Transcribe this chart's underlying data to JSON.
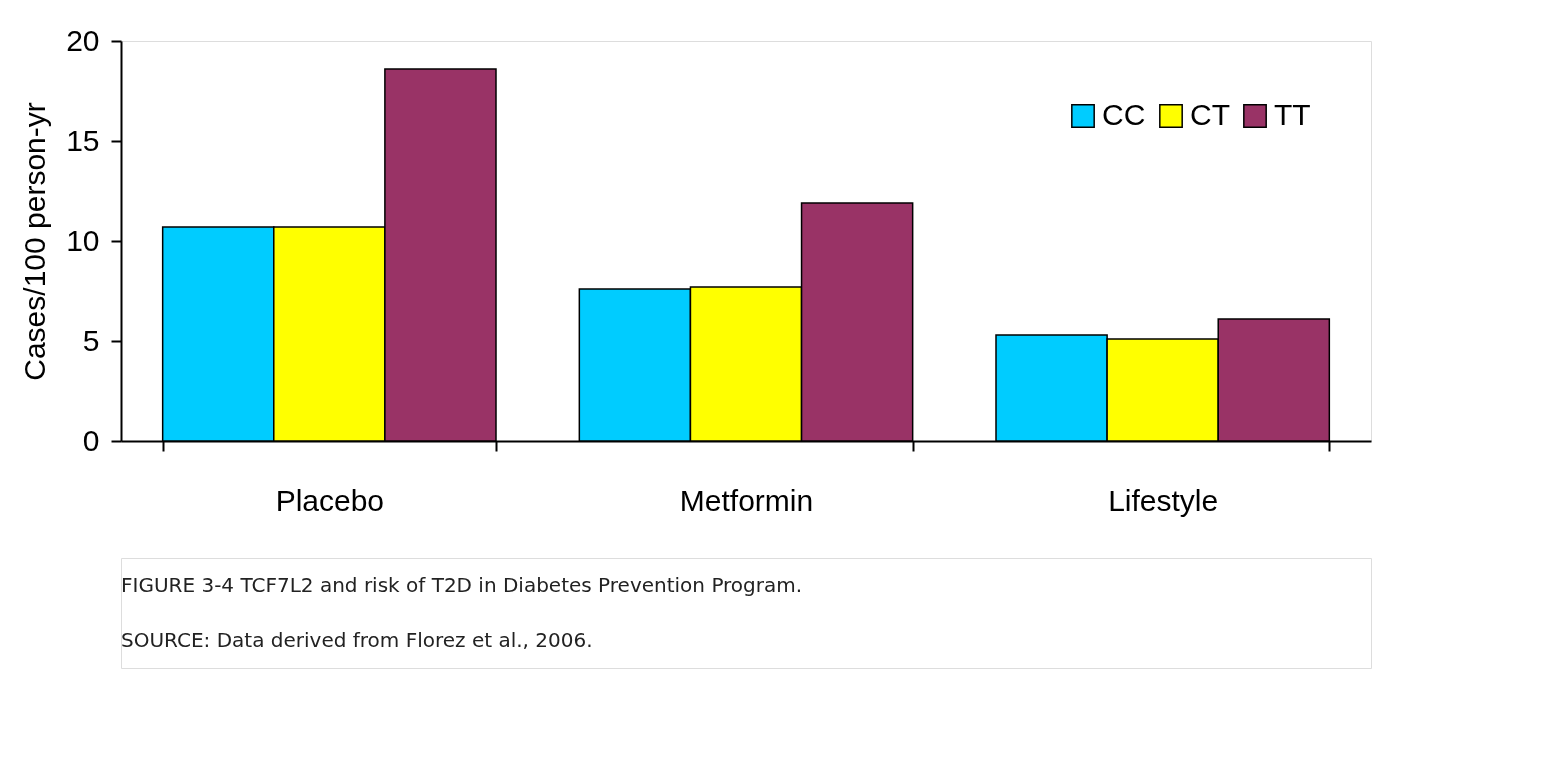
{
  "chart_data": {
    "type": "bar",
    "ylabel": "Cases/100 person-yr",
    "categories": [
      "Placebo",
      "Metformin",
      "Lifestyle"
    ],
    "series": [
      {
        "name": "CC",
        "color": "#00ccff",
        "values": [
          10.7,
          7.6,
          5.3
        ]
      },
      {
        "name": "CT",
        "color": "#ffff00",
        "values": [
          10.7,
          7.7,
          5.1
        ]
      },
      {
        "name": "TT",
        "color": "#993366",
        "values": [
          18.6,
          11.9,
          6.1
        ]
      }
    ],
    "ylim": [
      0,
      20
    ],
    "yticks": [
      0,
      5,
      10,
      15,
      20
    ],
    "grid": false,
    "legend": "top right",
    "annotations": [
      "FIGURE 3-4 TCF7L2 and risk of T2D in Diabetes Prevention Program.",
      "SOURCE: Data derived from Florez et al., 2006."
    ]
  }
}
